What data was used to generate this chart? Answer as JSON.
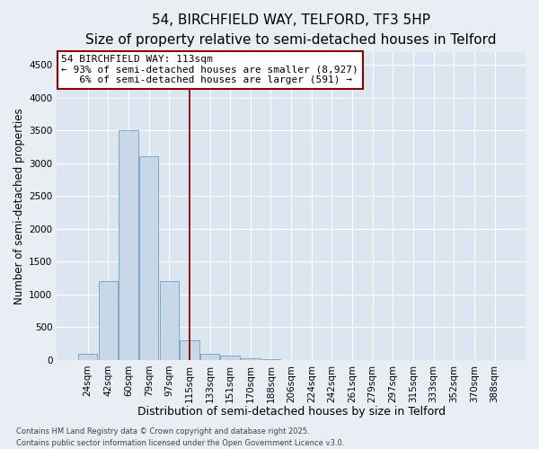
{
  "title1": "54, BIRCHFIELD WAY, TELFORD, TF3 5HP",
  "title2": "Size of property relative to semi-detached houses in Telford",
  "xlabel": "Distribution of semi-detached houses by size in Telford",
  "ylabel": "Number of semi-detached properties",
  "categories": [
    "24sqm",
    "42sqm",
    "60sqm",
    "79sqm",
    "97sqm",
    "115sqm",
    "133sqm",
    "151sqm",
    "170sqm",
    "188sqm",
    "206sqm",
    "224sqm",
    "242sqm",
    "261sqm",
    "279sqm",
    "297sqm",
    "315sqm",
    "333sqm",
    "352sqm",
    "370sqm",
    "388sqm"
  ],
  "bar_heights": [
    100,
    1200,
    3500,
    3100,
    1200,
    300,
    100,
    70,
    30,
    5,
    2,
    0,
    0,
    0,
    0,
    0,
    0,
    0,
    0,
    0,
    0
  ],
  "bar_color": "#c8d8e8",
  "bar_edge_color": "#7aaabf",
  "vline_index": 5,
  "vline_color": "#8b0000",
  "annotation_line1": "54 BIRCHFIELD WAY: 113sqm",
  "annotation_line2": "← 93% of semi-detached houses are smaller (8,927)",
  "annotation_line3": "   6% of semi-detached houses are larger (591) →",
  "annotation_box_color": "#8b0000",
  "ylim": [
    0,
    4700
  ],
  "yticks": [
    0,
    500,
    1000,
    1500,
    2000,
    2500,
    3000,
    3500,
    4000,
    4500
  ],
  "bg_color": "#e8eef4",
  "plot_bg_color": "#dce6f0",
  "footer1": "Contains HM Land Registry data © Crown copyright and database right 2025.",
  "footer2": "Contains public sector information licensed under the Open Government Licence v3.0.",
  "title1_fontsize": 11,
  "title2_fontsize": 9.5,
  "xlabel_fontsize": 9,
  "ylabel_fontsize": 8.5,
  "annotation_fontsize": 8,
  "tick_fontsize": 7.5,
  "footer_fontsize": 6
}
